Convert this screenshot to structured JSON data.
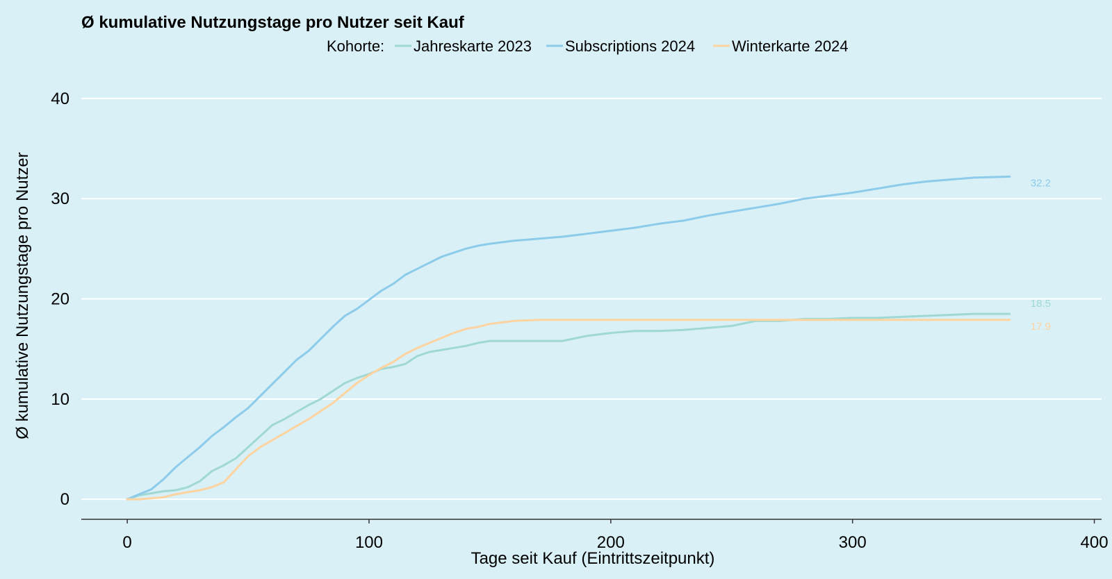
{
  "chart_data": {
    "type": "line",
    "title": "Ø kumulative Nutzungstage pro Nutzer seit Kauf",
    "legend_title": "Kohorte:",
    "xlabel": "Tage seit Kauf (Eintrittszeitpunkt)",
    "ylabel": "Ø kumulative Nutzungstage pro Nutzer",
    "xlim": [
      -19,
      403
    ],
    "ylim": [
      -2,
      42
    ],
    "x_ticks": [
      0,
      100,
      200,
      300,
      400
    ],
    "y_ticks": [
      0,
      10,
      20,
      30,
      40
    ],
    "x_tick_labels": [
      "0",
      "100",
      "200",
      "300",
      "400"
    ],
    "y_tick_labels": [
      "0",
      "10",
      "20",
      "30",
      "40"
    ],
    "grid": true,
    "legend_position": "top",
    "series": [
      {
        "name": "Jahreskarte 2023",
        "color": "#a0d8d3",
        "end_label": "18.5",
        "x": [
          0,
          5,
          10,
          15,
          20,
          25,
          30,
          35,
          40,
          45,
          50,
          55,
          60,
          65,
          70,
          75,
          80,
          85,
          90,
          95,
          100,
          105,
          110,
          115,
          120,
          125,
          130,
          135,
          140,
          145,
          150,
          160,
          170,
          180,
          190,
          200,
          210,
          220,
          230,
          240,
          250,
          260,
          270,
          280,
          290,
          300,
          310,
          320,
          330,
          340,
          350,
          365
        ],
        "values": [
          0,
          0.4,
          0.6,
          0.8,
          0.9,
          1.2,
          1.8,
          2.8,
          3.4,
          4.1,
          5.2,
          6.3,
          7.4,
          8.0,
          8.7,
          9.4,
          10.0,
          10.8,
          11.6,
          12.1,
          12.5,
          13.0,
          13.2,
          13.5,
          14.3,
          14.7,
          14.9,
          15.1,
          15.3,
          15.6,
          15.8,
          15.8,
          15.8,
          15.8,
          16.3,
          16.6,
          16.8,
          16.8,
          16.9,
          17.1,
          17.3,
          17.8,
          17.8,
          18.0,
          18.0,
          18.1,
          18.1,
          18.2,
          18.3,
          18.4,
          18.5,
          18.5
        ]
      },
      {
        "name": "Subscriptions 2024",
        "color": "#8ccbea",
        "end_label": "32.2",
        "x": [
          0,
          5,
          10,
          15,
          20,
          25,
          30,
          35,
          40,
          45,
          50,
          55,
          60,
          65,
          70,
          75,
          80,
          85,
          90,
          95,
          100,
          105,
          110,
          115,
          120,
          125,
          130,
          135,
          140,
          145,
          150,
          160,
          170,
          180,
          190,
          200,
          210,
          220,
          230,
          240,
          250,
          260,
          270,
          280,
          290,
          300,
          310,
          320,
          330,
          340,
          350,
          365
        ],
        "values": [
          0,
          0.5,
          1.0,
          2.0,
          3.2,
          4.2,
          5.2,
          6.3,
          7.2,
          8.2,
          9.1,
          10.3,
          11.5,
          12.7,
          13.9,
          14.8,
          16.0,
          17.2,
          18.3,
          19.0,
          19.9,
          20.8,
          21.5,
          22.4,
          23.0,
          23.6,
          24.2,
          24.6,
          25.0,
          25.3,
          25.5,
          25.8,
          26.0,
          26.2,
          26.5,
          26.8,
          27.1,
          27.5,
          27.8,
          28.3,
          28.7,
          29.1,
          29.5,
          30.0,
          30.3,
          30.6,
          31.0,
          31.4,
          31.7,
          31.9,
          32.1,
          32.2
        ]
      },
      {
        "name": "Winterkarte 2024",
        "color": "#fdd3a0",
        "end_label": "17.9",
        "x": [
          0,
          5,
          10,
          15,
          20,
          25,
          30,
          35,
          40,
          45,
          50,
          55,
          60,
          65,
          70,
          75,
          80,
          85,
          90,
          95,
          100,
          105,
          110,
          115,
          120,
          125,
          130,
          135,
          140,
          145,
          150,
          160,
          170,
          180,
          190,
          200,
          210,
          220,
          230,
          240,
          250,
          260,
          270,
          280,
          290,
          300,
          310,
          320,
          330,
          340,
          350,
          365
        ],
        "values": [
          0,
          0.0,
          0.1,
          0.2,
          0.5,
          0.7,
          0.9,
          1.2,
          1.7,
          3.0,
          4.3,
          5.2,
          5.9,
          6.6,
          7.3,
          8.0,
          8.8,
          9.6,
          10.6,
          11.6,
          12.4,
          13.1,
          13.7,
          14.5,
          15.1,
          15.6,
          16.1,
          16.6,
          17.0,
          17.2,
          17.5,
          17.8,
          17.9,
          17.9,
          17.9,
          17.9,
          17.9,
          17.9,
          17.9,
          17.9,
          17.9,
          17.9,
          17.9,
          17.9,
          17.9,
          17.9,
          17.9,
          17.9,
          17.9,
          17.9,
          17.9,
          17.9
        ]
      }
    ]
  }
}
